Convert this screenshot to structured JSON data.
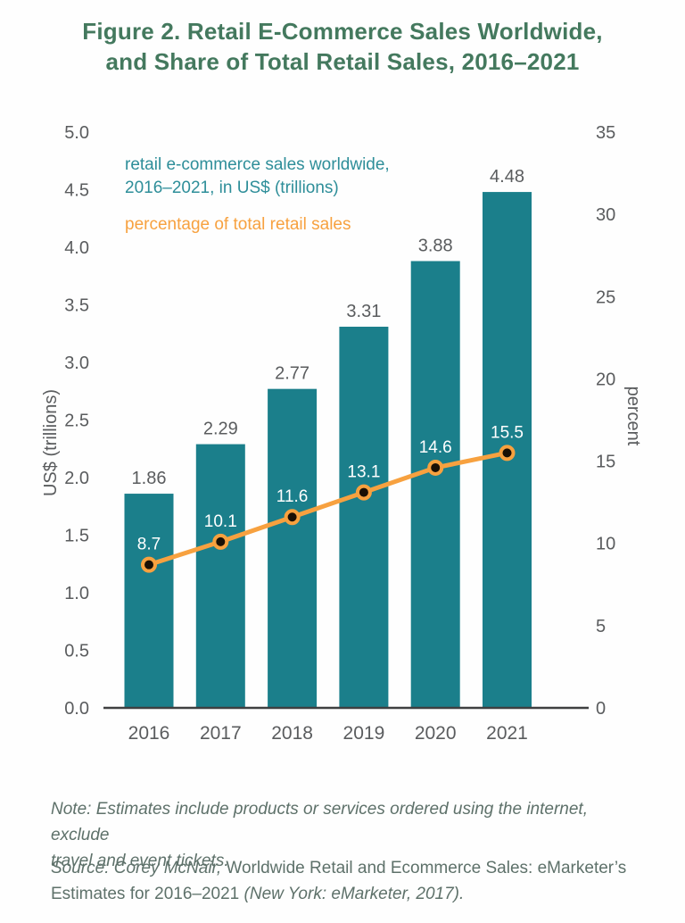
{
  "title": {
    "line1": "Figure 2. Retail E-Commerce Sales Worldwide,",
    "line2": "and Share of Total Retail Sales, 2016–2021"
  },
  "legend": {
    "bars_line1": "retail e-commerce sales worldwide,",
    "bars_line2": "2016–2021, in US$ (trillions)",
    "line_label": "percentage of total retail sales"
  },
  "chart_data": {
    "type": "bar+line combo",
    "categories": [
      "2016",
      "2017",
      "2018",
      "2019",
      "2020",
      "2021"
    ],
    "series": [
      {
        "name": "retail e-commerce sales worldwide, 2016–2021, in US$ (trillions)",
        "type": "bar",
        "axis": "left",
        "values": [
          1.86,
          2.29,
          2.77,
          3.31,
          3.88,
          4.48
        ],
        "labels": [
          "1.86",
          "2.29",
          "2.77",
          "3.31",
          "3.88",
          "4.48"
        ]
      },
      {
        "name": "percentage of total retail sales",
        "type": "line",
        "axis": "right",
        "values": [
          8.7,
          10.1,
          11.6,
          13.1,
          14.6,
          15.5
        ],
        "labels": [
          "8.7",
          "10.1",
          "11.6",
          "13.1",
          "14.6",
          "15.5"
        ]
      }
    ],
    "left_axis": {
      "label": "US$ (trillions)",
      "min": 0,
      "max": 5,
      "ticks": [
        "0.0",
        "0.5",
        "1.0",
        "1.5",
        "2.0",
        "2.5",
        "3.0",
        "3.5",
        "4.0",
        "4.5",
        "5.0"
      ]
    },
    "right_axis": {
      "label": "percent",
      "min": 0,
      "max": 35,
      "ticks": [
        "0",
        "5",
        "10",
        "15",
        "20",
        "25",
        "30",
        "35"
      ]
    },
    "grid": false,
    "legend_position": "top-left inside plot"
  },
  "note": {
    "line1": "Note: Estimates include products or services ordered using the internet, exclude",
    "line2": "travel and event tickets."
  },
  "source": {
    "seg1_italic": "Source: Corey McNair,",
    "seg2": " Worldwide Retail and Ecommerce Sales: eMarketer’s",
    "seg3": "Estimates for 2016–2021 ",
    "seg4_italic": "(New York: eMarketer, 2017)."
  },
  "colors": {
    "bar": "#1b7f8b",
    "line": "#f7a13f",
    "dot": "#1a1005",
    "title_text": "#44795e",
    "legend_bars_text": "#2e8e99",
    "legend_line_text": "#f7a13f",
    "tick_text": "#5a5c5e",
    "bar_label_text": "#5a5c5e",
    "pct_label_text": "#ffffff",
    "note_text": "#5e716a",
    "axis_line": "#3f4041",
    "background": "#fefefe"
  }
}
